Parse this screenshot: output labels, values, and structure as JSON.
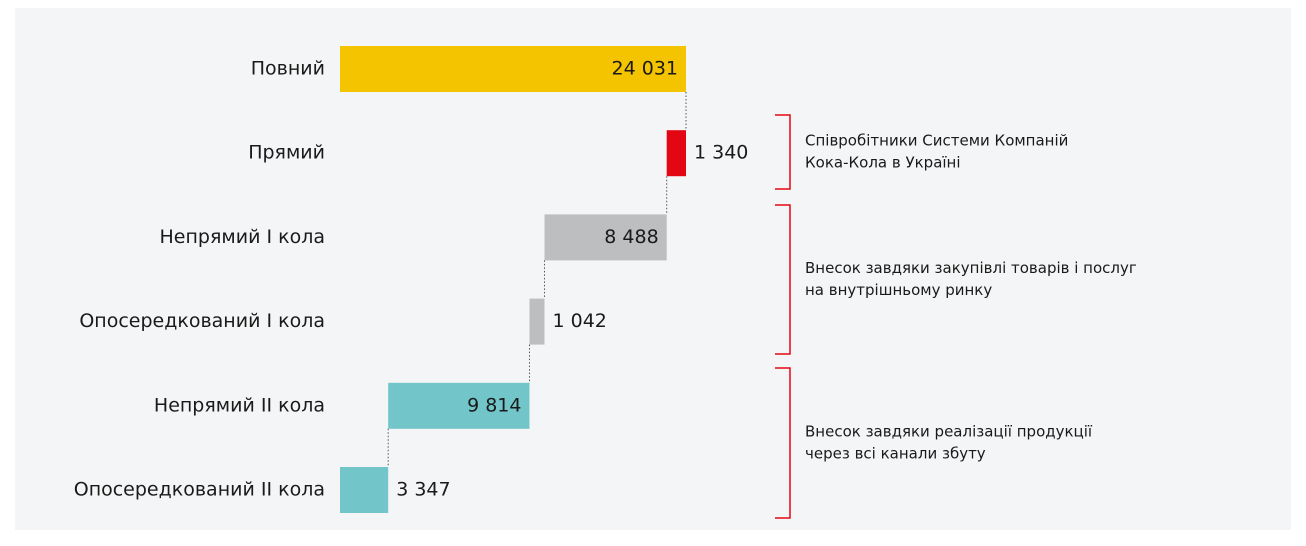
{
  "chart_data": {
    "type": "waterfall",
    "categories": [
      "Повний",
      "Прямий",
      "Непрямий I кола",
      "Опосередкований I кола",
      "Непрямий II кола",
      "Опосередкований II кола"
    ],
    "values": [
      24031,
      1340,
      8488,
      1042,
      9814,
      3347
    ],
    "value_labels": [
      "24 031",
      "1 340",
      "8 488",
      "1 042",
      "9 814",
      "3 347"
    ],
    "colors": [
      "#f5c400",
      "#e30613",
      "#bdbec0",
      "#bdbec0",
      "#72c6c9",
      "#72c6c9"
    ],
    "annotations": [
      [
        "Співробітники Системи Компаній",
        "Кока-Кола в Україні"
      ],
      [
        "Внесок завдяки закупівлі товарів і послуг",
        "на внутрішньому ринку"
      ],
      [
        "Внесок завдяки реалізації продукції",
        "через всі канали збуту"
      ]
    ]
  }
}
